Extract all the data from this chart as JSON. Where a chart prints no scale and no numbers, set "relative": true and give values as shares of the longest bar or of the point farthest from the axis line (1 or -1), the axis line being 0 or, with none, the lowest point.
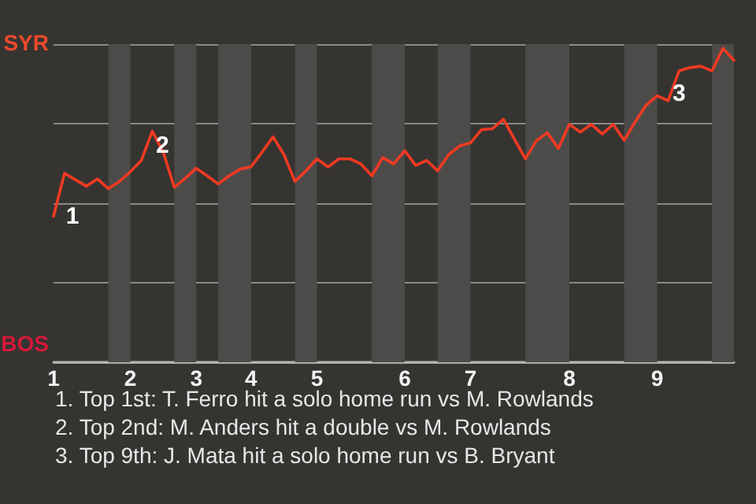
{
  "chart_data": {
    "type": "line",
    "relative": true,
    "categories": [
      "1",
      null,
      null,
      null,
      null,
      null,
      null,
      "2",
      null,
      null,
      null,
      null,
      null,
      "3",
      null,
      null,
      null,
      null,
      "4",
      null,
      null,
      null,
      null,
      null,
      "5",
      null,
      null,
      null,
      null,
      null,
      null,
      null,
      "6",
      null,
      null,
      null,
      null,
      null,
      "7",
      null,
      null,
      null,
      null,
      null,
      null,
      null,
      null,
      "8",
      null,
      null,
      null,
      null,
      null,
      null,
      null,
      "9",
      null,
      null,
      null,
      null,
      null,
      null,
      null
    ],
    "series": [
      {
        "color": "#f03a22",
        "values": [
          0.465,
          0.602,
          0.581,
          0.561,
          0.584,
          0.553,
          0.576,
          0.607,
          0.643,
          0.736,
          0.669,
          0.557,
          0.586,
          0.618,
          0.594,
          0.568,
          0.594,
          0.615,
          0.623,
          0.669,
          0.718,
          0.661,
          0.576,
          0.61,
          0.648,
          0.622,
          0.648,
          0.648,
          0.632,
          0.594,
          0.652,
          0.632,
          0.674,
          0.627,
          0.643,
          0.61,
          0.661,
          0.689,
          0.699,
          0.741,
          0.744,
          0.774,
          0.71,
          0.648,
          0.706,
          0.731,
          0.681,
          0.758,
          0.733,
          0.758,
          0.727,
          0.758,
          0.707,
          0.766,
          0.819,
          0.849,
          0.833,
          0.928,
          0.939,
          0.943,
          0.928,
          1,
          0.962
        ]
      }
    ],
    "grid": "y",
    "annotations": [
      {
        "text": "1",
        "x": "1",
        "y": 0.465
      },
      "2",
      "3",
      "SYR",
      "BOS",
      "1. Top 1st: T. Ferro hit a solo home run vs M. Rowlands",
      "2. Top 2nd: M. Anders hit a double vs M. Rowlands",
      "3. Top 9th: J. Mata hit a solo home run vs B. Bryant"
    ]
  }
}
